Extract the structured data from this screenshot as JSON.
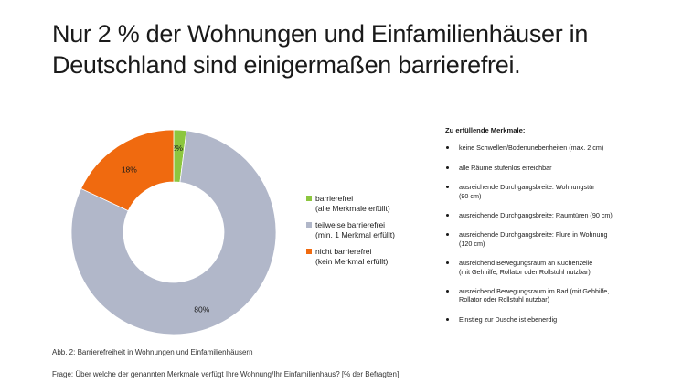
{
  "title": {
    "line1": "Nur 2 % der Wohnungen und Einfamilienhäuser in",
    "line2": "Deutschland sind einigermaßen barrierefrei."
  },
  "chart_data": {
    "type": "pie",
    "donut": true,
    "slices": [
      {
        "label": "barrierefrei (alle Merkmale erfüllt)",
        "value": 2,
        "display": "2%",
        "color": "#8cc63f"
      },
      {
        "label": "teilweise barrierefrei (min. 1 Merkmal erfüllt)",
        "value": 80,
        "display": "80%",
        "color": "#b1b7c9"
      },
      {
        "label": "nicht barrierefrei (kein Merkmal erfüllt)",
        "value": 18,
        "display": "18%",
        "color": "#f06a0f"
      }
    ],
    "legend_position": "right"
  },
  "legend": [
    {
      "line1": "barrierefrei",
      "line2": "(alle Merkmale erfüllt)",
      "color": "#8cc63f"
    },
    {
      "line1": "teilweise barrierefrei",
      "line2": "(min. 1 Merkmal erfüllt)",
      "color": "#b1b7c9"
    },
    {
      "line1": "nicht barrierefrei",
      "line2": "(kein Merkmal erfüllt)",
      "color": "#f06a0f"
    }
  ],
  "criteria": {
    "title": "Zu erfüllende Merkmale:",
    "items": [
      {
        "line1": "keine Schwellen/Bodenunebenheiten (max. 2 cm)",
        "line2": ""
      },
      {
        "line1": "alle Räume stufenlos erreichbar",
        "line2": ""
      },
      {
        "line1": "ausreichende Durchgangsbreite: Wohnungstür",
        "line2": "(90 cm)"
      },
      {
        "line1": "ausreichende Durchgangsbreite: Raumtüren (90 cm)",
        "line2": ""
      },
      {
        "line1": "ausreichende Durchgangsbreite: Flure in Wohnung",
        "line2": "(120 cm)"
      },
      {
        "line1": "ausreichend Bewegungsraum an Küchenzeile",
        "line2": "(mit Gehhilfe, Rollator oder Rollstuhl nutzbar)"
      },
      {
        "line1": "ausreichend Bewegungsraum im Bad (mit Gehhilfe,",
        "line2": "Rollator oder Rollstuhl nutzbar)"
      },
      {
        "line1": "Einstieg zur Dusche ist ebenerdig",
        "line2": ""
      }
    ]
  },
  "caption": "Abb. 2: Barrierefreiheit in Wohnungen und Einfamilienhäusern",
  "question": "Frage: Über welche der genannten Merkmale verfügt Ihre Wohnung/Ihr Einfamilienhaus? [% der Befragten]"
}
